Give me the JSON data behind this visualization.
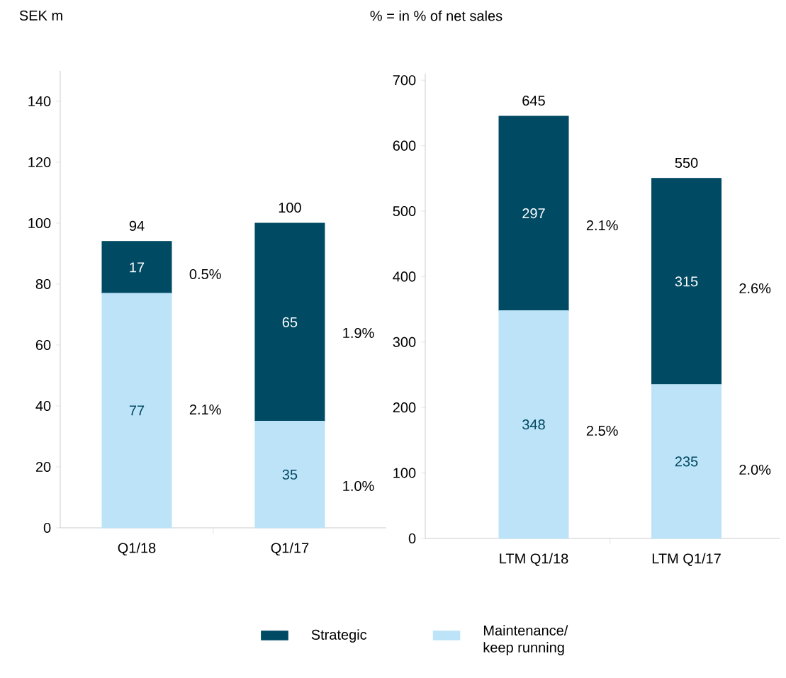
{
  "chart_data": [
    {
      "type": "bar",
      "stacked": true,
      "ylabel": "SEK m",
      "categories": [
        "Q1/18",
        "Q1/17"
      ],
      "ylim": [
        0,
        150
      ],
      "yticks": [
        0,
        20,
        40,
        60,
        80,
        100,
        120,
        140
      ],
      "series": [
        {
          "color": "#bde3f8",
          "values": [
            77,
            35
          ]
        },
        {
          "color": "#004a63",
          "values": [
            17,
            65
          ]
        }
      ],
      "data_labels": true,
      "totals": [
        "94",
        "100"
      ],
      "annotations": [
        "0.5%",
        "2.1%",
        "1.9%",
        "1.0%"
      ]
    },
    {
      "type": "bar",
      "stacked": true,
      "categories": [
        "LTM Q1/18",
        "LTM Q1/17"
      ],
      "ylim": [
        0,
        710
      ],
      "yticks": [
        0,
        100,
        200,
        300,
        400,
        500,
        600,
        700
      ],
      "series": [
        {
          "name": "Maintenance/ keep running",
          "color": "#bde3f8",
          "values": [
            348,
            235
          ]
        },
        {
          "name": "Strategic",
          "color": "#004a63",
          "values": [
            297,
            315
          ]
        }
      ],
      "data_labels": true,
      "totals": [
        "645",
        "550"
      ],
      "legend": "bottom",
      "annotations": [
        "% = in % of net sales",
        "2.1%",
        "2.5%",
        "2.6%",
        "2.0%"
      ]
    }
  ]
}
